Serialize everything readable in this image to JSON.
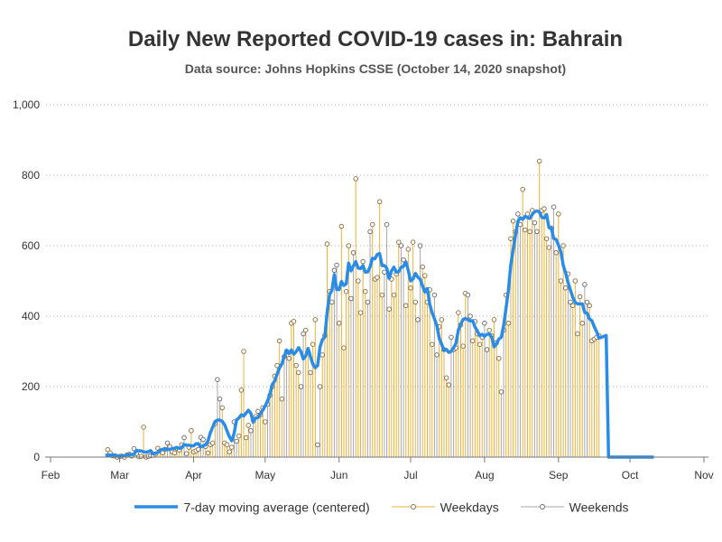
{
  "title": "Daily New Reported COVID-19 cases in: Bahrain",
  "subtitle": "Data source: Johns Hopkins CSSE (October 14, 2020 snapshot)",
  "legend": {
    "avg": "7-day moving average (centered)",
    "weekdays": "Weekdays",
    "weekends": "Weekends"
  },
  "colors": {
    "avg": "#2b8ce6",
    "weekday": "#e8b13c",
    "weekend": "#a9a9a9",
    "grid": "#aaaaaa"
  },
  "chart_data": {
    "type": "bar",
    "title": "Daily New Reported COVID-19 cases in: Bahrain",
    "subtitle": "Data source: Johns Hopkins CSSE (October 14, 2020 snapshot)",
    "xlabel": "",
    "ylabel": "",
    "ylim": [
      0,
      1000
    ],
    "yticks": [
      0,
      200,
      400,
      600,
      800,
      1000
    ],
    "ytick_labels": [
      "0",
      "200",
      "400",
      "600",
      "800",
      "1,000"
    ],
    "x_start": "2020-02-01",
    "xlim": [
      "2020-02-01",
      "2020-11-01"
    ],
    "xticks": [
      "2020-02-01",
      "2020-03-01",
      "2020-04-01",
      "2020-05-01",
      "2020-06-01",
      "2020-07-01",
      "2020-08-01",
      "2020-09-01",
      "2020-10-01",
      "2020-11-01"
    ],
    "xtick_labels": [
      "Feb",
      "Mar",
      "Apr",
      "May",
      "Jun",
      "Jul",
      "Aug",
      "Sep",
      "Oct",
      "Nov"
    ],
    "grid": "horizontal dotted",
    "legend_position": "bottom",
    "daily_values": [
      0,
      0,
      0,
      0,
      0,
      0,
      0,
      0,
      0,
      0,
      0,
      0,
      0,
      0,
      0,
      0,
      0,
      0,
      0,
      0,
      0,
      0,
      0,
      0,
      21,
      12,
      4,
      3,
      0,
      2,
      3,
      0,
      6,
      8,
      3,
      24,
      10,
      1,
      2,
      85,
      0,
      2,
      4,
      5,
      9,
      25,
      18,
      12,
      22,
      40,
      30,
      15,
      12,
      25,
      20,
      35,
      55,
      10,
      28,
      75,
      15,
      18,
      22,
      56,
      50,
      30,
      12,
      35,
      40,
      95,
      220,
      165,
      140,
      40,
      35,
      15,
      28,
      100,
      45,
      60,
      190,
      300,
      55,
      90,
      75,
      105,
      115,
      130,
      120,
      140,
      100,
      150,
      175,
      200,
      230,
      260,
      330,
      165,
      285,
      300,
      280,
      380,
      385,
      260,
      240,
      200,
      350,
      360,
      300,
      240,
      320,
      390,
      35,
      200,
      290,
      345,
      605,
      470,
      440,
      530,
      545,
      380,
      655,
      310,
      470,
      600,
      450,
      580,
      790,
      500,
      410,
      555,
      470,
      440,
      640,
      660,
      505,
      510,
      725,
      460,
      525,
      660,
      420,
      505,
      460,
      520,
      610,
      600,
      560,
      430,
      590,
      480,
      610,
      440,
      390,
      600,
      540,
      515,
      440,
      475,
      320,
      460,
      290,
      370,
      390,
      305,
      225,
      205,
      340,
      305,
      310,
      410,
      375,
      315,
      465,
      460,
      400,
      330,
      385,
      350,
      320,
      340,
      380,
      305,
      360,
      345,
      390,
      325,
      280,
      185,
      360,
      460,
      380,
      620,
      670,
      640,
      690,
      660,
      760,
      645,
      690,
      640,
      700,
      665,
      640,
      840,
      700,
      705,
      620,
      595,
      650,
      710,
      580,
      690,
      500,
      600,
      480,
      520,
      440,
      430,
      500,
      350,
      455,
      380,
      490,
      440,
      430,
      330,
      335,
      340,
      345
    ],
    "weekend_offset": 0,
    "weekend_period": 7,
    "weekend_days": [
      0,
      1
    ],
    "moving_average_range": [
      "2020-02-24",
      "2020-10-11"
    ]
  }
}
